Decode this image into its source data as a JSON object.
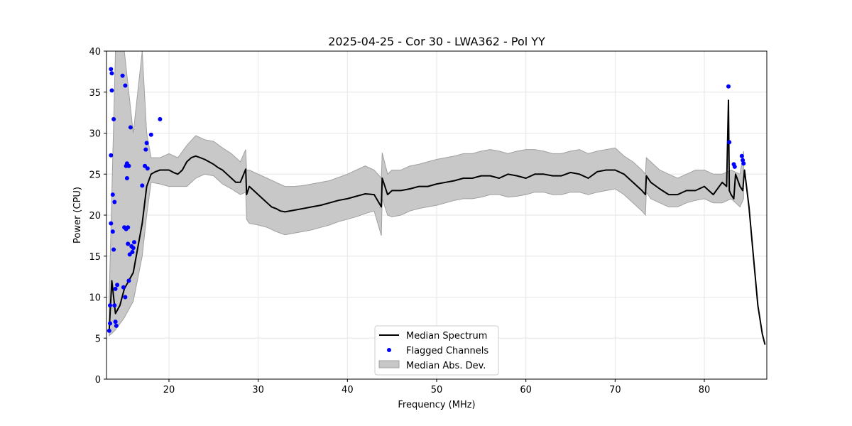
{
  "chart_data": {
    "type": "line",
    "title": "2025-04-25 - Cor 30 - LWA362 - Pol YY",
    "xlabel": "Frequency (MHz)",
    "ylabel": "Power (CPU)",
    "xlim": [
      13,
      87
    ],
    "ylim": [
      0,
      40
    ],
    "x_ticks": [
      20,
      30,
      40,
      50,
      60,
      70,
      80
    ],
    "y_ticks": [
      0,
      5,
      10,
      15,
      20,
      25,
      30,
      35,
      40
    ],
    "grid": true,
    "legend_position": "bottom-center",
    "colors": {
      "median": "#000000",
      "flagged": "#0000ff",
      "mad_fill": "#c8c8c8",
      "mad_edge": "#a0a0a0"
    },
    "series": [
      {
        "name": "Median Spectrum",
        "kind": "line",
        "x": [
          13.3,
          13.6,
          14.0,
          14.5,
          15.0,
          15.5,
          16.0,
          16.5,
          17.0,
          17.5,
          18.0,
          18.5,
          19.0,
          19.5,
          20.0,
          20.5,
          21.0,
          21.5,
          22.0,
          22.5,
          23.0,
          23.5,
          24.0,
          24.5,
          25.0,
          25.5,
          26.0,
          26.5,
          27.0,
          27.5,
          28.0,
          28.6,
          28.7,
          29.0,
          29.5,
          30.0,
          30.5,
          31.0,
          31.5,
          32.0,
          32.5,
          33.0,
          34.0,
          35.0,
          36.0,
          37.0,
          38.0,
          39.0,
          40.0,
          41.0,
          42.0,
          43.0,
          43.8,
          43.9,
          44.5,
          45.0,
          46.0,
          47.0,
          48.0,
          49.0,
          50.0,
          51.0,
          52.0,
          53.0,
          54.0,
          55.0,
          56.0,
          57.0,
          58.0,
          59.0,
          60.0,
          61.0,
          62.0,
          63.0,
          64.0,
          65.0,
          66.0,
          67.0,
          68.0,
          69.0,
          70.0,
          71.0,
          72.0,
          73.0,
          73.4,
          73.5,
          74.0,
          75.0,
          76.0,
          77.0,
          78.0,
          79.0,
          80.0,
          81.0,
          82.0,
          82.5,
          82.7,
          82.8,
          83.0,
          83.3,
          83.5,
          84.0,
          84.3,
          84.5,
          85.0,
          85.5,
          86.0,
          86.5,
          86.8
        ],
        "y": [
          6.0,
          12.0,
          8.0,
          9.0,
          11.0,
          12.0,
          13.0,
          16.0,
          19.0,
          23.5,
          25.0,
          25.3,
          25.5,
          25.5,
          25.5,
          25.2,
          25.0,
          25.5,
          26.5,
          27.0,
          27.2,
          27.0,
          26.8,
          26.5,
          26.2,
          25.8,
          25.5,
          25.0,
          24.5,
          24.0,
          24.0,
          25.6,
          22.5,
          23.5,
          23.0,
          22.5,
          22.0,
          21.5,
          21.0,
          20.8,
          20.5,
          20.4,
          20.6,
          20.8,
          21.0,
          21.2,
          21.5,
          21.8,
          22.0,
          22.3,
          22.6,
          22.5,
          21.0,
          24.5,
          22.5,
          23.0,
          23.0,
          23.2,
          23.5,
          23.5,
          23.8,
          24.0,
          24.2,
          24.5,
          24.5,
          24.8,
          24.8,
          24.5,
          25.0,
          24.8,
          24.5,
          25.0,
          25.0,
          24.8,
          24.8,
          25.2,
          25.0,
          24.5,
          25.3,
          25.5,
          25.5,
          25.0,
          24.0,
          23.0,
          22.5,
          24.8,
          24.0,
          23.2,
          22.5,
          22.5,
          23.0,
          23.0,
          23.5,
          22.5,
          24.0,
          23.5,
          34.0,
          23.0,
          22.5,
          22.0,
          25.0,
          23.5,
          23.0,
          25.5,
          21.0,
          15.0,
          9.0,
          5.5,
          4.2
        ]
      },
      {
        "name": "Flagged Channels",
        "kind": "scatter",
        "x": [
          13.3,
          13.4,
          13.4,
          13.5,
          13.5,
          13.5,
          13.6,
          13.6,
          13.7,
          13.7,
          13.8,
          13.8,
          13.9,
          13.9,
          14.0,
          14.0,
          14.1,
          14.2,
          14.8,
          14.9,
          15.0,
          15.1,
          15.1,
          15.2,
          15.2,
          15.3,
          15.3,
          15.4,
          15.4,
          15.5,
          15.5,
          15.6,
          15.7,
          15.8,
          15.9,
          16.0,
          16.1,
          17.0,
          17.3,
          17.4,
          17.5,
          17.6,
          18.0,
          19.0,
          82.7,
          82.8,
          83.3,
          83.4,
          84.2,
          84.3,
          84.4
        ],
        "y": [
          5.9,
          6.8,
          9.0,
          19.0,
          27.3,
          37.8,
          35.2,
          37.3,
          18.0,
          22.5,
          31.7,
          15.8,
          21.6,
          9.0,
          7.0,
          11.0,
          6.5,
          11.5,
          37.0,
          11.2,
          18.5,
          35.8,
          10.0,
          26.0,
          18.3,
          24.5,
          26.3,
          18.5,
          16.5,
          26.0,
          12.0,
          15.2,
          30.7,
          16.2,
          15.5,
          16.0,
          16.7,
          23.6,
          26.0,
          28.0,
          28.8,
          25.7,
          29.8,
          31.7,
          35.7,
          28.9,
          26.2,
          25.9,
          27.2,
          26.7,
          26.3
        ]
      },
      {
        "name": "Median Abs. Dev.",
        "kind": "band",
        "x": [
          13.3,
          14.0,
          15.0,
          16.0,
          17.0,
          17.5,
          18.0,
          19.0,
          20.0,
          21.0,
          22.0,
          23.0,
          24.0,
          25.0,
          26.0,
          27.0,
          28.0,
          28.6,
          28.7,
          29.0,
          30.0,
          31.0,
          32.0,
          33.0,
          34.0,
          35.0,
          36.0,
          37.0,
          38.0,
          39.0,
          40.0,
          41.0,
          42.0,
          43.0,
          43.8,
          43.9,
          44.5,
          45.0,
          46.0,
          47.0,
          48.0,
          49.0,
          50.0,
          51.0,
          52.0,
          53.0,
          54.0,
          55.0,
          56.0,
          57.0,
          58.0,
          59.0,
          60.0,
          61.0,
          62.0,
          63.0,
          64.0,
          65.0,
          66.0,
          67.0,
          68.0,
          69.0,
          70.0,
          71.0,
          72.0,
          73.0,
          73.4,
          73.5,
          74.0,
          75.0,
          76.0,
          77.0,
          78.0,
          79.0,
          80.0,
          81.0,
          82.0,
          83.0,
          84.0,
          84.4
        ],
        "y_low": [
          5.3,
          6.0,
          7.5,
          9.5,
          15.0,
          20.0,
          24.0,
          23.8,
          23.5,
          23.5,
          23.5,
          24.5,
          25.0,
          24.8,
          23.8,
          23.2,
          22.5,
          22.8,
          19.5,
          19.0,
          18.8,
          18.5,
          18.0,
          17.6,
          17.8,
          18.0,
          18.2,
          18.5,
          18.8,
          19.2,
          19.5,
          19.8,
          20.2,
          20.5,
          17.5,
          22.0,
          20.0,
          19.8,
          20.0,
          20.5,
          20.8,
          21.0,
          21.2,
          21.5,
          21.8,
          22.0,
          22.0,
          22.2,
          22.5,
          22.5,
          22.2,
          22.3,
          22.5,
          22.8,
          22.8,
          22.5,
          22.5,
          22.8,
          22.8,
          22.5,
          22.8,
          23.0,
          23.2,
          22.5,
          21.5,
          20.5,
          20.0,
          22.8,
          22.0,
          21.5,
          21.0,
          21.0,
          21.5,
          21.8,
          22.0,
          21.5,
          21.5,
          22.0,
          21.0,
          22.0
        ],
        "y_high": [
          10.0,
          40.0,
          40.0,
          30.0,
          40.0,
          30.0,
          27.0,
          27.0,
          27.5,
          27.0,
          28.5,
          29.7,
          29.2,
          29.0,
          28.2,
          27.5,
          26.5,
          28.0,
          25.5,
          25.5,
          25.0,
          24.5,
          24.0,
          23.5,
          23.5,
          23.6,
          23.8,
          24.0,
          24.2,
          24.6,
          25.0,
          25.5,
          26.0,
          25.5,
          24.5,
          27.6,
          25.0,
          25.5,
          25.5,
          26.0,
          26.2,
          26.5,
          26.8,
          27.0,
          27.2,
          27.5,
          27.5,
          27.8,
          28.0,
          27.8,
          27.5,
          27.8,
          28.0,
          28.0,
          27.8,
          27.5,
          27.5,
          27.8,
          28.0,
          27.5,
          27.8,
          28.0,
          28.2,
          27.2,
          26.5,
          25.5,
          25.0,
          27.0,
          26.5,
          25.5,
          25.0,
          24.5,
          25.0,
          25.5,
          25.5,
          25.0,
          25.0,
          25.5,
          25.0,
          27.8
        ]
      }
    ]
  }
}
